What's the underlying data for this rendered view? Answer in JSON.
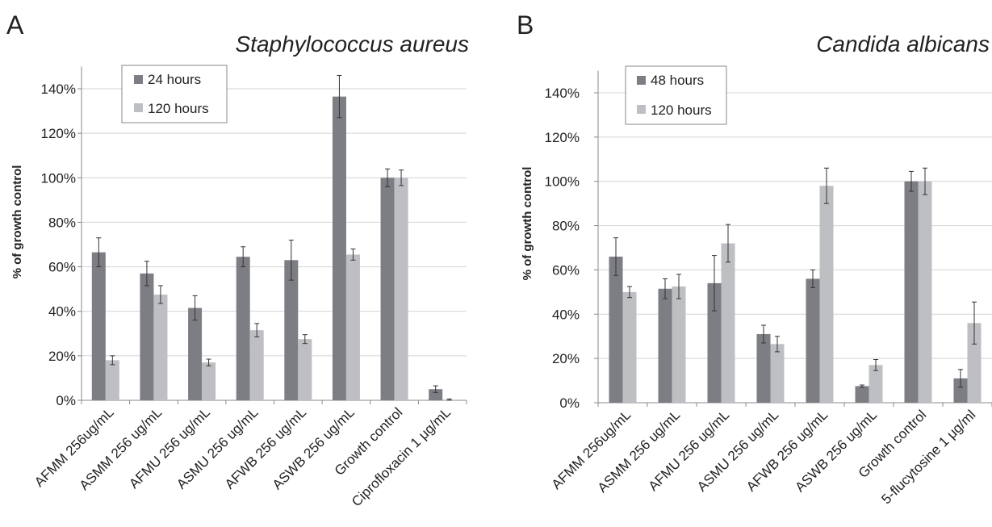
{
  "chart_data": [
    {
      "panel_label": "A",
      "type": "bar",
      "title": "Staphylococcus aureus",
      "ylabel": "% of growth control",
      "xlabel": "",
      "ylim": [
        0,
        150
      ],
      "yticks": [
        0,
        20,
        40,
        60,
        80,
        100,
        120,
        140
      ],
      "ytick_labels": [
        "0%",
        "20%",
        "40%",
        "60%",
        "80%",
        "100%",
        "120%",
        "140%"
      ],
      "categories": [
        "AFMM 256ug/mL",
        "ASMM 256 ug/mL",
        "AFMU 256 ug/mL",
        "ASMU 256 ug/mL",
        "AFWB 256 ug/mL",
        "ASWB 256 ug/mL",
        "Growth control",
        "Ciprofloxacin 1 μg/mL"
      ],
      "series": [
        {
          "name": "24 hours",
          "color": "#7d7e83",
          "values": [
            66.5,
            57,
            41.5,
            64.5,
            63,
            136.5,
            100,
            5
          ],
          "errors": [
            6.5,
            5.5,
            5.5,
            4.5,
            9,
            9.5,
            4,
            1.5
          ]
        },
        {
          "name": "120 hours",
          "color": "#bebfc3",
          "values": [
            18,
            47.5,
            17,
            31.5,
            27.5,
            65.5,
            100,
            0.3
          ],
          "errors": [
            2,
            4,
            1.5,
            3,
            2,
            2.5,
            3.5,
            0.3
          ]
        }
      ],
      "grid": "horizontal",
      "legend": "top-left"
    },
    {
      "panel_label": "B",
      "type": "bar",
      "title": "Candida albicans",
      "ylabel": "% of growth control",
      "xlabel": "",
      "ylim": [
        0,
        150
      ],
      "yticks": [
        0,
        20,
        40,
        60,
        80,
        100,
        120,
        140
      ],
      "ytick_labels": [
        "0%",
        "20%",
        "40%",
        "60%",
        "80%",
        "100%",
        "120%",
        "140%"
      ],
      "categories": [
        "AFMM 256ug/mL",
        "ASMM 256 ug/mL",
        "AFMU 256 ug/mL",
        "ASMU 256 ug/mL",
        "AFWB 256 ug/mL",
        "ASWB 256 ug/mL",
        "Growth control",
        "5-flucytosine 1 μg/ml"
      ],
      "series": [
        {
          "name": "48 hours",
          "color": "#7d7e83",
          "values": [
            66,
            51.5,
            54,
            31,
            56,
            7.5,
            100,
            11
          ],
          "errors": [
            8.5,
            4.5,
            12.5,
            4,
            4,
            0.5,
            4.5,
            4
          ]
        },
        {
          "name": "120 hours",
          "color": "#bebfc3",
          "values": [
            50,
            52.5,
            72,
            26.5,
            98,
            17,
            100,
            36
          ],
          "errors": [
            2.5,
            5.5,
            8.5,
            3.5,
            8,
            2.5,
            6,
            9.5
          ]
        }
      ],
      "grid": "horizontal",
      "legend": "top-left"
    }
  ]
}
